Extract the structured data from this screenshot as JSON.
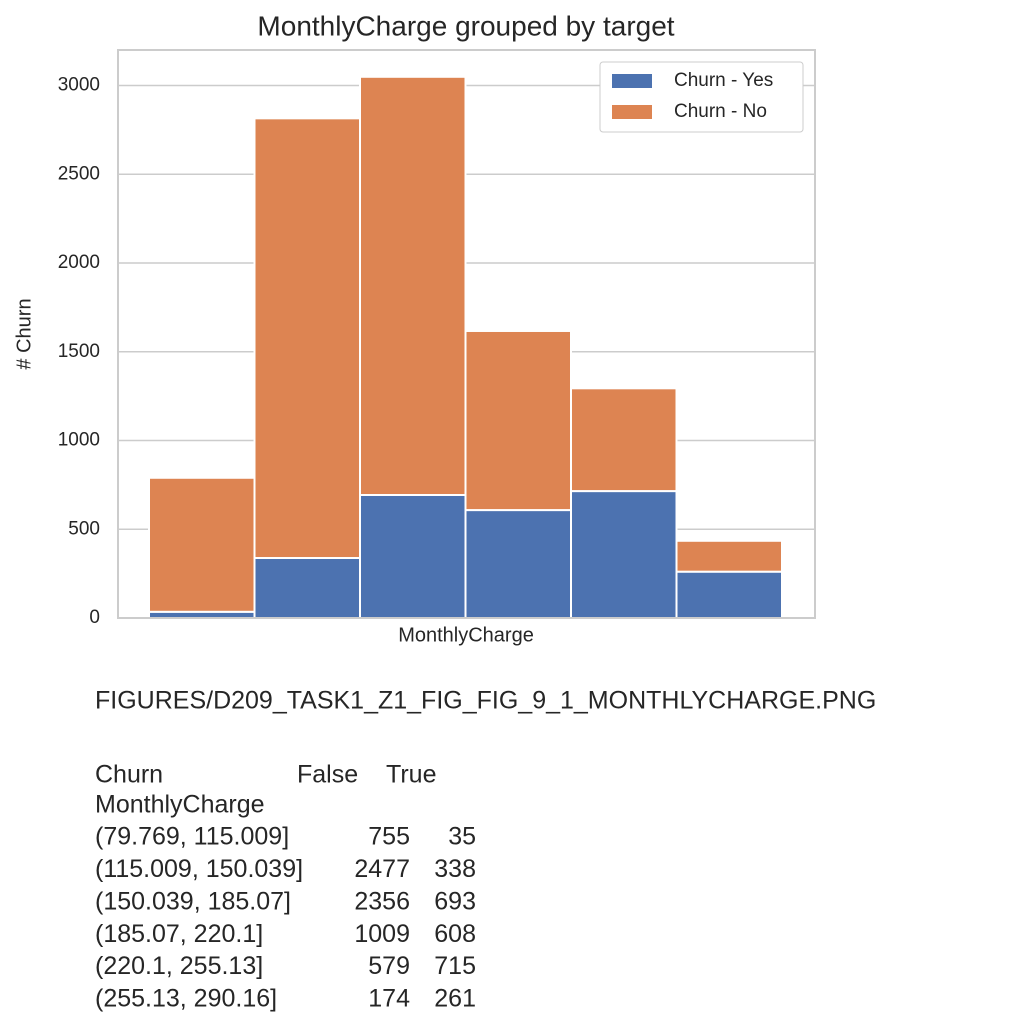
{
  "chart_data": {
    "type": "bar",
    "stacked": true,
    "title": "MonthlyCharge grouped by target",
    "x_label": "MonthlyCharge",
    "y_label": "# Churn",
    "categories": [
      "(79.769, 115.009]",
      "(115.009, 150.039]",
      "(150.039, 185.07]",
      "(185.07, 220.1]",
      "(220.1, 255.13]",
      "(255.13, 290.16]"
    ],
    "series": [
      {
        "name": "Churn - Yes",
        "color": "#4c72b0",
        "values": [
          35,
          338,
          693,
          608,
          715,
          261
        ]
      },
      {
        "name": "Churn - No",
        "color": "#dd8452",
        "values": [
          755,
          2477,
          2356,
          1009,
          579,
          174
        ]
      }
    ],
    "ylim": [
      0,
      3200
    ],
    "yticks": [
      0,
      500,
      1000,
      1500,
      2000,
      2500,
      3000
    ],
    "grid": true,
    "legend": "upper-right"
  },
  "caption": "FIGURES/D209_TASK1_Z1_FIG_FIG_9_1_MONTHLYCHARGE.PNG",
  "table": {
    "columns_name": "Churn",
    "columns": [
      "False",
      "True"
    ],
    "index_name": "MonthlyCharge"
  }
}
